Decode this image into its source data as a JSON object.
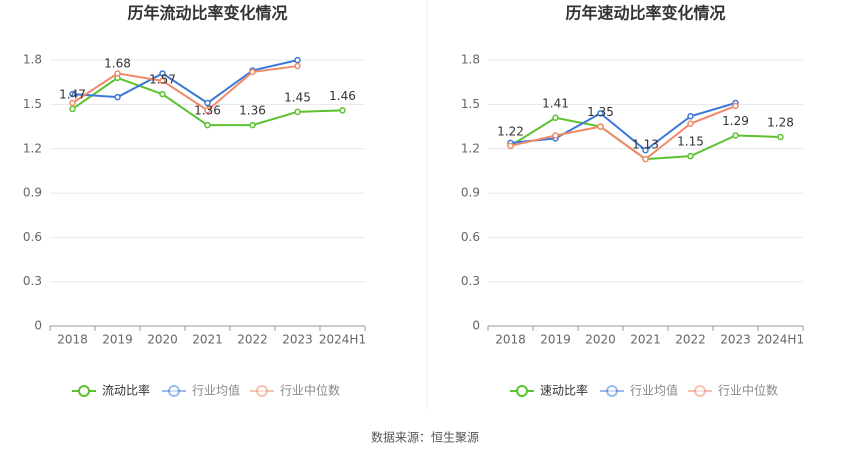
{
  "chart_data": [
    {
      "type": "line",
      "title": "历年流动比率变化情况",
      "categories": [
        "2018",
        "2019",
        "2020",
        "2021",
        "2022",
        "2023",
        "2024H1"
      ],
      "series": [
        {
          "name": "流动比率",
          "color": "#5cc22f",
          "values": [
            1.47,
            1.68,
            1.57,
            1.36,
            1.36,
            1.45,
            1.46
          ]
        },
        {
          "name": "行业均值",
          "color": "#3c78d8",
          "values": [
            1.57,
            1.55,
            1.71,
            1.51,
            1.73,
            1.8,
            null
          ]
        },
        {
          "name": "行业中位数",
          "color": "#f08a68",
          "values": [
            1.51,
            1.71,
            1.66,
            1.46,
            1.72,
            1.76,
            null
          ]
        }
      ],
      "ylim": [
        0,
        1.95
      ],
      "yticks": [
        0,
        0.3,
        0.6,
        0.9,
        1.2,
        1.5,
        1.8
      ],
      "grid": true,
      "legend": "bottom"
    },
    {
      "type": "line",
      "title": "历年速动比率变化情况",
      "categories": [
        "2018",
        "2019",
        "2020",
        "2021",
        "2022",
        "2023",
        "2024H1"
      ],
      "series": [
        {
          "name": "速动比率",
          "color": "#5cc22f",
          "values": [
            1.22,
            1.41,
            1.35,
            1.13,
            1.15,
            1.29,
            1.28
          ]
        },
        {
          "name": "行业均值",
          "color": "#3c78d8",
          "values": [
            1.24,
            1.27,
            1.44,
            1.19,
            1.42,
            1.51,
            null
          ]
        },
        {
          "name": "行业中位数",
          "color": "#f08a68",
          "values": [
            1.22,
            1.29,
            1.35,
            1.13,
            1.37,
            1.49,
            null
          ]
        }
      ],
      "ylim": [
        0,
        1.95
      ],
      "yticks": [
        0,
        0.3,
        0.6,
        0.9,
        1.2,
        1.5,
        1.8
      ],
      "grid": true,
      "legend": "bottom"
    }
  ],
  "source": "数据来源：恒生聚源"
}
